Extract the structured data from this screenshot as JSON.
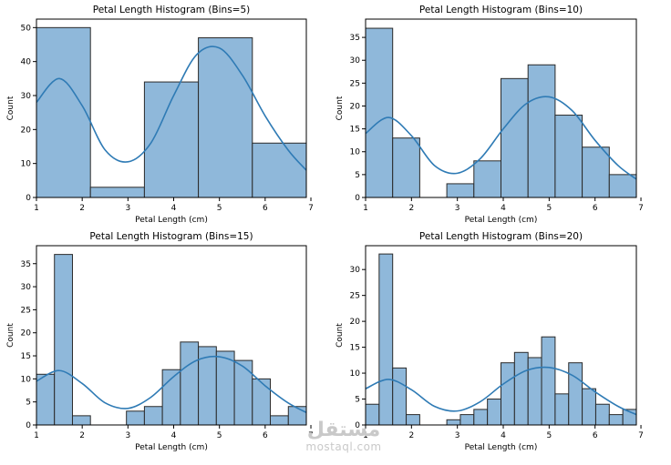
{
  "figure": {
    "bg": "#ffffff"
  },
  "style": {
    "bar_fill": "#8fb8da",
    "bar_edge": "#2a2a2a",
    "kde": "#2f7bb5",
    "axis": "#000000"
  },
  "watermark": {
    "arabic": "مستقل",
    "latin": "mostaql.com"
  },
  "chart_data": [
    {
      "type": "bar",
      "title": "Petal Length Histogram (Bins=5)",
      "xlabel": "Petal Length (cm)",
      "ylabel": "Count",
      "xlim": [
        1,
        6.9
      ],
      "ylim": [
        0,
        52.5
      ],
      "xticks": [
        1,
        2,
        3,
        4,
        5,
        6,
        7
      ],
      "yticks": [
        0,
        10,
        20,
        30,
        40,
        50
      ],
      "bin_edges": [
        1.0,
        2.18,
        3.36,
        4.54,
        5.72,
        6.9
      ],
      "values": [
        50,
        3,
        34,
        47,
        16
      ],
      "kde": {
        "x": [
          1.0,
          1.5,
          2.0,
          2.5,
          3.0,
          3.5,
          4.0,
          4.5,
          5.0,
          5.5,
          6.0,
          6.5,
          6.9
        ],
        "y": [
          28,
          35,
          27,
          14,
          10.5,
          16,
          30,
          42,
          44,
          36,
          24,
          14,
          8
        ]
      }
    },
    {
      "type": "bar",
      "title": "Petal Length Histogram (Bins=10)",
      "xlabel": "Petal Length (cm)",
      "ylabel": "Count",
      "xlim": [
        1,
        6.9
      ],
      "ylim": [
        0,
        39
      ],
      "xticks": [
        1,
        2,
        3,
        4,
        5,
        6,
        7
      ],
      "yticks": [
        0,
        5,
        10,
        15,
        20,
        25,
        30,
        35
      ],
      "bin_edges": [
        1.0,
        1.59,
        2.18,
        2.77,
        3.36,
        3.95,
        4.54,
        5.13,
        5.72,
        6.31,
        6.9
      ],
      "values": [
        37,
        13,
        0,
        3,
        8,
        26,
        29,
        18,
        11,
        5
      ],
      "kde": {
        "x": [
          1.0,
          1.5,
          2.0,
          2.5,
          3.0,
          3.5,
          4.0,
          4.5,
          5.0,
          5.5,
          6.0,
          6.5,
          6.9
        ],
        "y": [
          14,
          17.5,
          13.5,
          7,
          5.3,
          8.5,
          15,
          20.5,
          22,
          19,
          12.5,
          7,
          4
        ]
      }
    },
    {
      "type": "bar",
      "title": "Petal Length Histogram (Bins=15)",
      "xlabel": "Petal Length (cm)",
      "ylabel": "Count",
      "xlim": [
        1,
        6.9
      ],
      "ylim": [
        0,
        38.9
      ],
      "xticks": [
        1,
        2,
        3,
        4,
        5,
        6,
        7
      ],
      "yticks": [
        0,
        5,
        10,
        15,
        20,
        25,
        30,
        35
      ],
      "bin_edges": [
        1.0,
        1.393,
        1.787,
        2.18,
        2.573,
        2.967,
        3.36,
        3.753,
        4.147,
        4.54,
        4.933,
        5.327,
        5.72,
        6.113,
        6.507,
        6.9
      ],
      "values": [
        11,
        37,
        2,
        0,
        0,
        3,
        4,
        12,
        18,
        17,
        16,
        14,
        10,
        2,
        4
      ],
      "kde": {
        "x": [
          1.0,
          1.5,
          2.0,
          2.5,
          3.0,
          3.5,
          4.0,
          4.5,
          5.0,
          5.5,
          6.0,
          6.5,
          6.9
        ],
        "y": [
          9.5,
          11.8,
          9,
          4.8,
          3.6,
          6,
          10.5,
          14,
          14.8,
          12.8,
          8.5,
          4.8,
          2.7
        ]
      }
    },
    {
      "type": "bar",
      "title": "Petal Length Histogram (Bins=20)",
      "xlabel": "Petal Length (cm)",
      "ylabel": "Count",
      "xlim": [
        1,
        6.9
      ],
      "ylim": [
        0,
        34.6
      ],
      "xticks": [
        1,
        2,
        3,
        4,
        5,
        6,
        7
      ],
      "yticks": [
        0,
        5,
        10,
        15,
        20,
        25,
        30
      ],
      "bin_edges": [
        1.0,
        1.295,
        1.59,
        1.885,
        2.18,
        2.475,
        2.77,
        3.065,
        3.36,
        3.655,
        3.95,
        4.245,
        4.54,
        4.835,
        5.13,
        5.425,
        5.72,
        6.015,
        6.31,
        6.605,
        6.9
      ],
      "values": [
        4,
        33,
        11,
        2,
        0,
        0,
        1,
        2,
        3,
        5,
        12,
        14,
        13,
        17,
        6,
        12,
        7,
        4,
        2,
        3
      ],
      "kde": {
        "x": [
          1.0,
          1.5,
          2.0,
          2.5,
          3.0,
          3.5,
          4.0,
          4.5,
          5.0,
          5.5,
          6.0,
          6.5,
          6.9
        ],
        "y": [
          7,
          8.8,
          6.8,
          3.6,
          2.7,
          4.5,
          7.9,
          10.5,
          11.1,
          9.6,
          6.4,
          3.6,
          2
        ]
      }
    }
  ]
}
